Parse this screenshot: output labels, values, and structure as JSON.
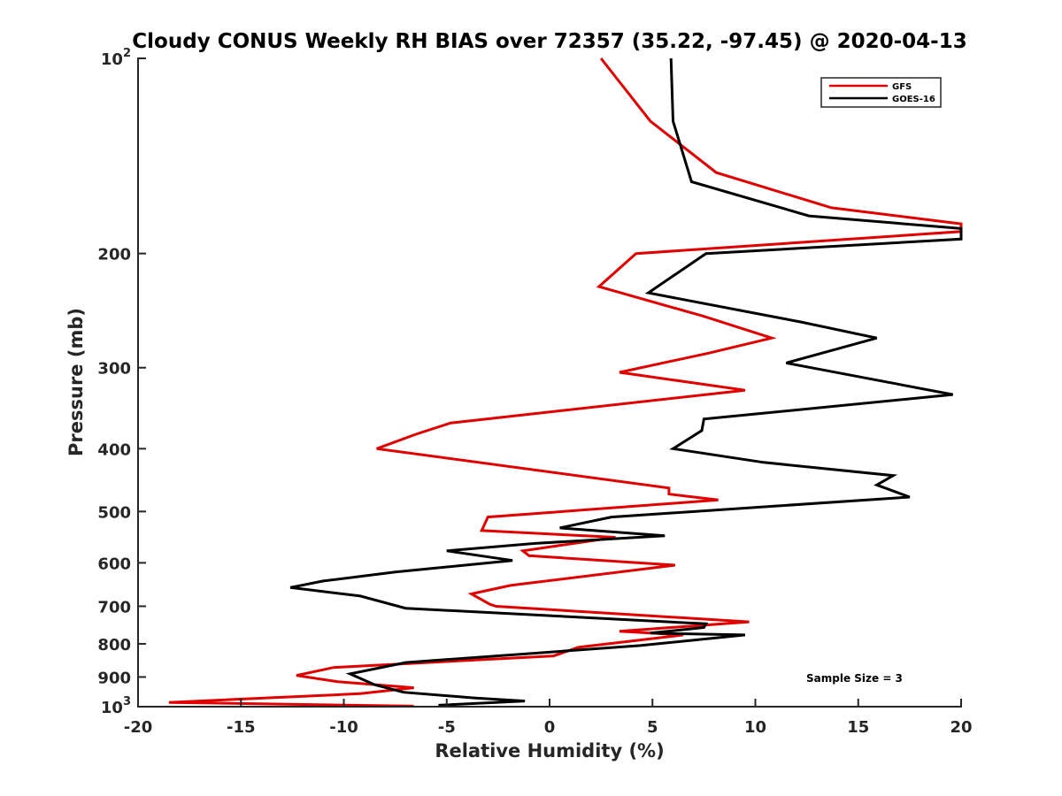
{
  "chart_data": {
    "type": "line",
    "title": "Cloudy CONUS Weekly RH BIAS over 72357 (35.22, -97.45) @ 2020-04-13",
    "xlabel": "Relative Humidity (%)",
    "ylabel": "Pressure (mb)",
    "xlim": [
      -20,
      20
    ],
    "ylim": [
      100,
      1000
    ],
    "y_scale": "log",
    "y_reversed": true,
    "x_ticks": [
      "-20",
      "-15",
      "-10",
      "-5",
      "0",
      "5",
      "10",
      "15",
      "20"
    ],
    "y_ticks": [
      {
        "base": "10",
        "exp": "2"
      },
      {
        "base": "200",
        "exp": ""
      },
      {
        "base": "300",
        "exp": ""
      },
      {
        "base": "400",
        "exp": ""
      },
      {
        "base": "500",
        "exp": ""
      },
      {
        "base": "600",
        "exp": ""
      },
      {
        "base": "700",
        "exp": ""
      },
      {
        "base": "800",
        "exp": ""
      },
      {
        "base": "900",
        "exp": ""
      },
      {
        "base": "10",
        "exp": "3"
      }
    ],
    "grid": false,
    "legend_position": "top-right",
    "annotation": "Sample Size = 3",
    "series": [
      {
        "name": "GFS",
        "color": "#e00000",
        "points": [
          [
            2.5,
            100
          ],
          [
            4.9,
            125
          ],
          [
            8.1,
            150
          ],
          [
            13.7,
            170
          ],
          [
            20.0,
            180
          ],
          [
            20.0,
            185
          ],
          [
            4.2,
            200
          ],
          [
            2.4,
            225
          ],
          [
            7.5,
            250
          ],
          [
            10.8,
            270
          ],
          [
            7.7,
            285
          ],
          [
            3.4,
            305
          ],
          [
            9.5,
            325
          ],
          [
            -4.8,
            365
          ],
          [
            -6.5,
            380
          ],
          [
            -8.4,
            400
          ],
          [
            5.8,
            460
          ],
          [
            5.8,
            470
          ],
          [
            8.2,
            480
          ],
          [
            -3.0,
            510
          ],
          [
            -3.3,
            535
          ],
          [
            3.2,
            548
          ],
          [
            -1.3,
            575
          ],
          [
            -1.0,
            585
          ],
          [
            6.1,
            605
          ],
          [
            -1.9,
            650
          ],
          [
            -3.8,
            670
          ],
          [
            -2.9,
            695
          ],
          [
            -2.6,
            700
          ],
          [
            9.7,
            740
          ],
          [
            3.4,
            765
          ],
          [
            6.5,
            775
          ],
          [
            1.4,
            810
          ],
          [
            0.2,
            835
          ],
          [
            -10.5,
            870
          ],
          [
            -12.3,
            895
          ],
          [
            -10.3,
            915
          ],
          [
            -6.6,
            935
          ],
          [
            -9.2,
            955
          ],
          [
            -18.5,
            985
          ],
          [
            -6.6,
            998
          ]
        ]
      },
      {
        "name": "GOES-16",
        "color": "#000000",
        "points": [
          [
            5.9,
            100
          ],
          [
            6.0,
            125
          ],
          [
            6.9,
            155
          ],
          [
            12.6,
            175
          ],
          [
            20.0,
            183
          ],
          [
            20.0,
            190
          ],
          [
            7.6,
            200
          ],
          [
            4.8,
            230
          ],
          [
            12.2,
            255
          ],
          [
            15.9,
            270
          ],
          [
            11.5,
            295
          ],
          [
            19.6,
            330
          ],
          [
            7.5,
            360
          ],
          [
            7.4,
            375
          ],
          [
            6.0,
            400
          ],
          [
            10.4,
            420
          ],
          [
            16.7,
            440
          ],
          [
            15.9,
            455
          ],
          [
            17.5,
            475
          ],
          [
            3.0,
            510
          ],
          [
            0.5,
            530
          ],
          [
            5.6,
            545
          ],
          [
            -0.7,
            560
          ],
          [
            -5.0,
            575
          ],
          [
            -1.8,
            595
          ],
          [
            -7.5,
            620
          ],
          [
            -11.0,
            640
          ],
          [
            -12.6,
            655
          ],
          [
            -9.2,
            675
          ],
          [
            -7.0,
            705
          ],
          [
            7.6,
            745
          ],
          [
            7.5,
            755
          ],
          [
            4.9,
            770
          ],
          [
            9.5,
            775
          ],
          [
            4.4,
            805
          ],
          [
            -7.0,
            855
          ],
          [
            -9.7,
            890
          ],
          [
            -8.5,
            925
          ],
          [
            -7.1,
            950
          ],
          [
            -3.6,
            970
          ],
          [
            -1.2,
            980
          ],
          [
            -5.4,
            995
          ]
        ]
      }
    ]
  }
}
